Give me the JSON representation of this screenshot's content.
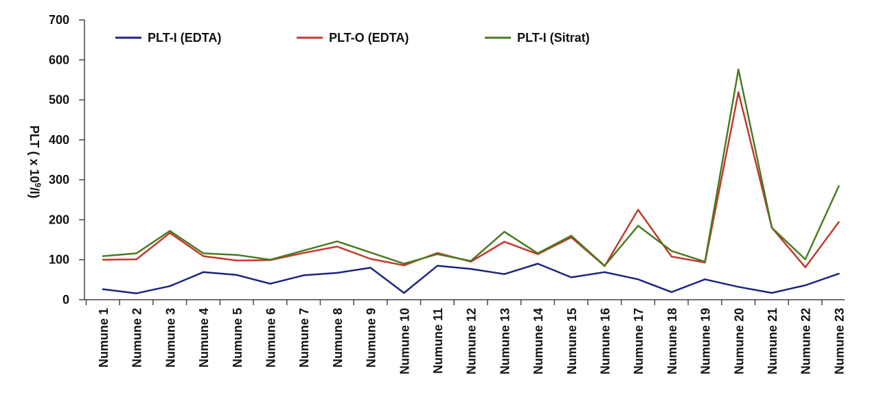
{
  "chart_data": {
    "type": "line",
    "ylabel_prefix": "PLT ( x 10",
    "ylabel_sup": "9",
    "ylabel_suffix": "/l)",
    "ylim": [
      0,
      700
    ],
    "yticks": [
      0,
      100,
      200,
      300,
      400,
      500,
      600,
      700
    ],
    "grid": false,
    "legend_position": "top",
    "categories": [
      "Numune 1",
      "Numune 2",
      "Numune 3",
      "Numune 4",
      "Numune 5",
      "Numune 6",
      "Numune 7",
      "Numune 8",
      "Numune 9",
      "Numune 10",
      "Numune 11",
      "Numune 12",
      "Numune 13",
      "Numune 14",
      "Numune 15",
      "Numune 16",
      "Numune 17",
      "Numune 18",
      "Numune 19",
      "Numune 20",
      "Numune 21",
      "Numune 22",
      "Numune 23"
    ],
    "series": [
      {
        "name": "PLT-I (EDTA)",
        "color": "#1a237e",
        "values": [
          26,
          16,
          34,
          69,
          62,
          40,
          61,
          67,
          80,
          17,
          85,
          77,
          64,
          90,
          56,
          69,
          51,
          19,
          51,
          32,
          17,
          36,
          65
        ]
      },
      {
        "name": "PLT-O (EDTA)",
        "color": "#c0392b",
        "values": [
          100,
          101,
          167,
          109,
          98,
          99,
          117,
          133,
          102,
          86,
          117,
          95,
          145,
          114,
          156,
          84,
          225,
          108,
          93,
          519,
          180,
          81,
          194
        ]
      },
      {
        "name": "PLT-I (Sitrat)",
        "color": "#4a7a1f",
        "values": [
          109,
          116,
          172,
          116,
          112,
          100,
          123,
          146,
          118,
          90,
          114,
          97,
          170,
          116,
          160,
          85,
          185,
          122,
          95,
          576,
          180,
          101,
          284
        ]
      }
    ]
  }
}
